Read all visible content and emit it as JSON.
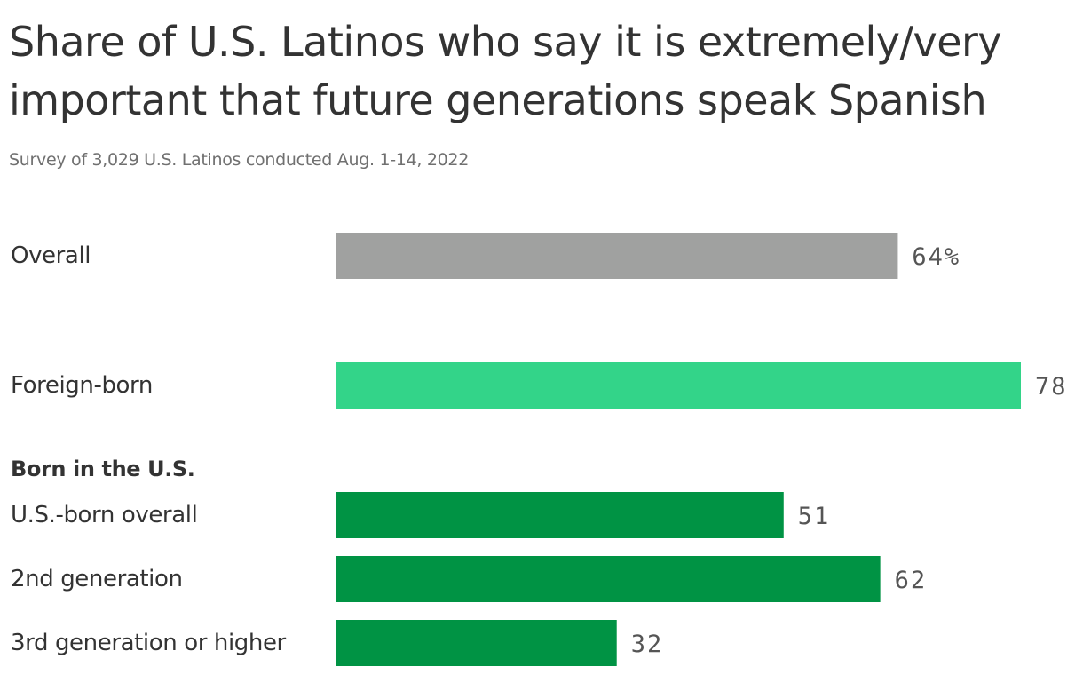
{
  "title": "Share of U.S. Latinos who say it is extremely/very important that future generations speak Spanish",
  "subtitle": "Survey of 3,029 U.S. Latinos conducted Aug. 1-14, 2022",
  "chart_data": {
    "type": "bar",
    "orientation": "horizontal",
    "title": "Share of U.S. Latinos who say it is extremely/very important that future generations speak Spanish",
    "subtitle": "Survey of 3,029 U.S. Latinos conducted Aug. 1-14, 2022",
    "xlim": [
      0,
      78
    ],
    "grid": false,
    "legend": "none",
    "unit": "%",
    "group_label": "Born in the U.S.",
    "categories": [
      "Overall",
      "Foreign-born",
      "U.S.-born overall",
      "2nd generation",
      "3rd generation or higher"
    ],
    "values": [
      64,
      78,
      51,
      62,
      32
    ],
    "value_labels": [
      "64%",
      "78",
      "51",
      "62",
      "32"
    ],
    "groups": [
      "",
      "",
      "Born in the U.S.",
      "Born in the U.S.",
      "Born in the U.S."
    ],
    "colors": [
      "#a0a1a0",
      "#33d489",
      "#009344",
      "#009344",
      "#009344"
    ]
  }
}
